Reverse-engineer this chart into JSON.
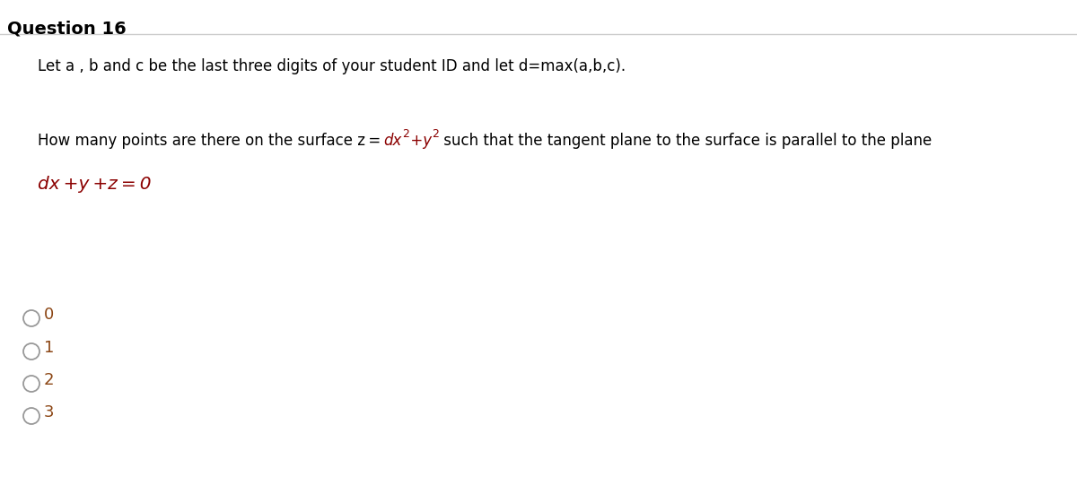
{
  "title": "Question 16",
  "bg_color": "#ffffff",
  "title_color": "#000000",
  "text_color": "#000000",
  "math_color": "#8B0000",
  "option_color": "#8B4513",
  "line1": "Let a , b and c be the last three digits of your student ID and let d=max(a,b,c).",
  "options": [
    "0",
    "1",
    "2",
    "3"
  ],
  "fig_width": 12.0,
  "fig_height": 5.51,
  "dpi": 100
}
